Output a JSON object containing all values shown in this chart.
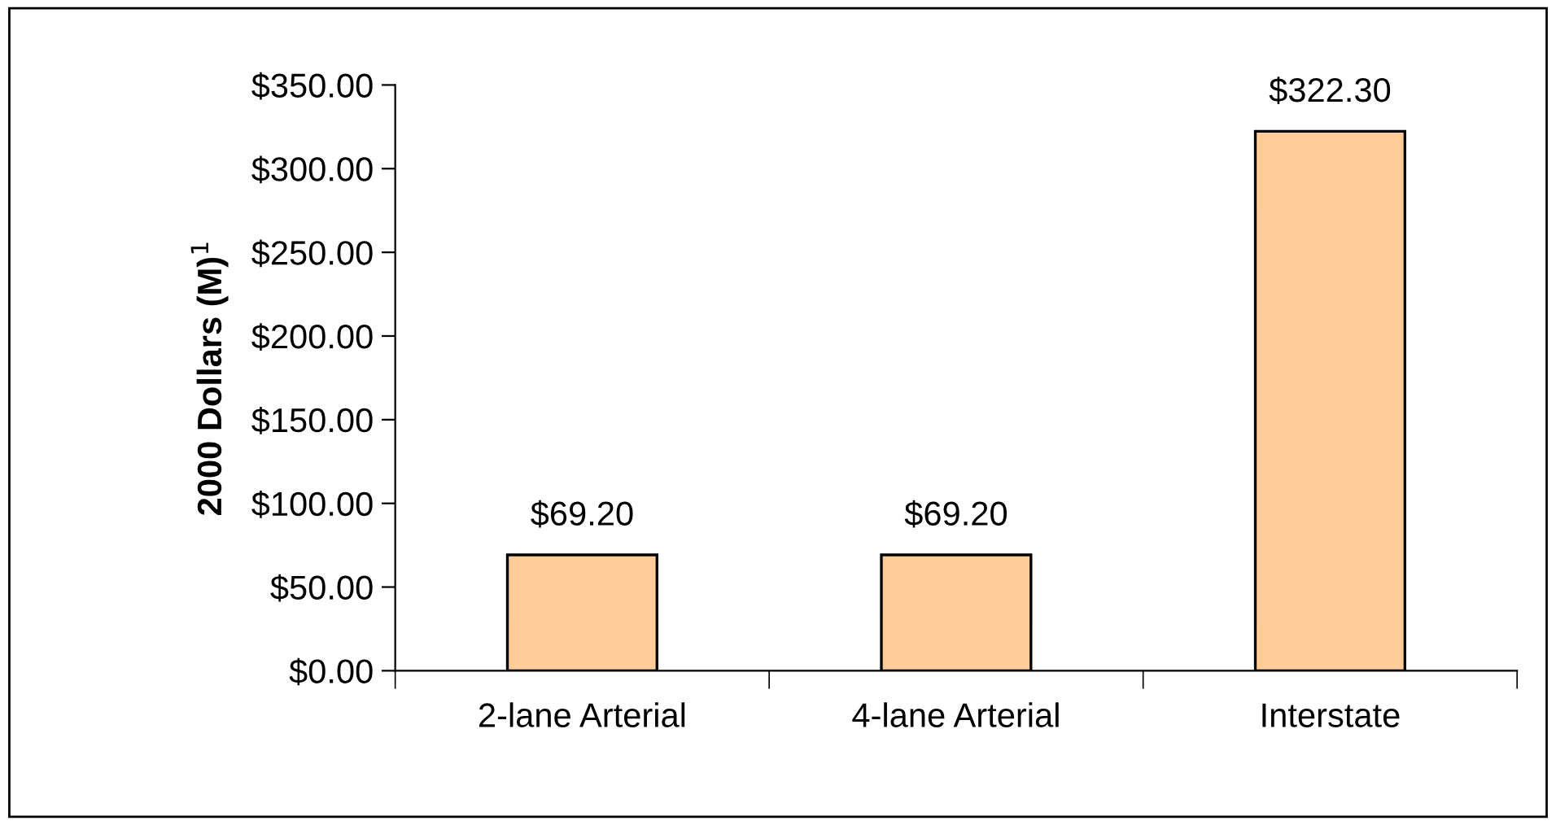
{
  "chart_data": {
    "type": "bar",
    "ylabel": "2000 Dollars (M)$^{1}$",
    "categories": [
      "2-lane Arterial",
      "4-lane Arterial",
      "Interstate"
    ],
    "values": [
      69.2,
      69.2,
      322.3
    ],
    "value_labels": [
      "$69.20",
      "$69.20",
      "$322.30"
    ],
    "color": "#ffcc99",
    "ylim": [
      0,
      350
    ],
    "yticks": [
      {
        "value": 0,
        "label": "$0.00"
      },
      {
        "value": 50,
        "label": "$50.00"
      },
      {
        "value": 100,
        "label": "$100.00"
      },
      {
        "value": 150,
        "label": "$150.00"
      },
      {
        "value": 200,
        "label": "$200.00"
      },
      {
        "value": 250,
        "label": "$250.00"
      },
      {
        "value": 300,
        "label": "$300.00"
      },
      {
        "value": 350,
        "label": "$350.00"
      }
    ],
    "grid": false,
    "legend": false
  }
}
